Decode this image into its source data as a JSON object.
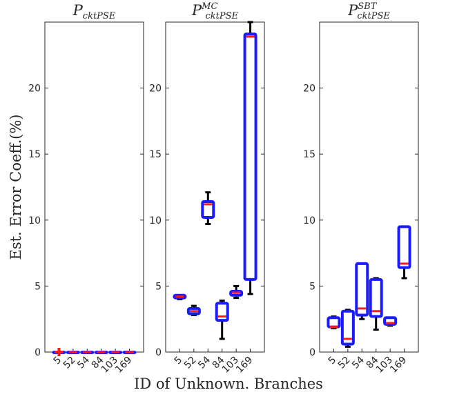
{
  "chart_data": {
    "type": "box",
    "ylabel": "Est. Error Coeff.(%)",
    "xlabel": "ID of Unknown. Branches",
    "ylim": [
      0,
      25
    ],
    "yticks": [
      0,
      5,
      10,
      15,
      20
    ],
    "box_color": "#1a1aff",
    "median_color": "#ff1a1a",
    "whisker_color": "#000000",
    "panels": [
      {
        "title_main": "P",
        "title_sub": "cktPSE",
        "title_sup": "",
        "categories": [
          "5",
          "52",
          "54",
          "84",
          "103",
          "169"
        ],
        "boxes": [
          {
            "min": 0,
            "q1": 0,
            "median": 0,
            "q3": 0,
            "max": 0
          },
          {
            "min": 0,
            "q1": 0,
            "median": 0,
            "q3": 0,
            "max": 0
          },
          {
            "min": 0,
            "q1": 0,
            "median": 0,
            "q3": 0,
            "max": 0
          },
          {
            "min": 0,
            "q1": 0,
            "median": 0,
            "q3": 0,
            "max": 0
          },
          {
            "min": 0,
            "q1": 0,
            "median": 0,
            "q3": 0,
            "max": 0
          },
          {
            "min": 0,
            "q1": 0,
            "median": 0,
            "q3": 0,
            "max": 0
          }
        ],
        "outliers": [
          {
            "category": "5",
            "value": 0
          }
        ]
      },
      {
        "title_main": "P",
        "title_sub": "cktPSE",
        "title_sup": "MC",
        "categories": [
          "5",
          "52",
          "54",
          "84",
          "103",
          "169"
        ],
        "boxes": [
          {
            "min": 4.0,
            "q1": 4.1,
            "median": 4.2,
            "q3": 4.3,
            "max": 4.3
          },
          {
            "min": 2.8,
            "q1": 2.9,
            "median": 3.1,
            "q3": 3.3,
            "max": 3.5
          },
          {
            "min": 9.7,
            "q1": 10.2,
            "median": 11.2,
            "q3": 11.4,
            "max": 12.1
          },
          {
            "min": 1.0,
            "q1": 2.4,
            "median": 2.7,
            "q3": 3.7,
            "max": 3.9
          },
          {
            "min": 4.1,
            "q1": 4.3,
            "median": 4.5,
            "q3": 4.6,
            "max": 5.0
          },
          {
            "min": 4.4,
            "q1": 5.5,
            "median": 23.9,
            "q3": 24.1,
            "max": 25.0
          }
        ],
        "outliers": []
      },
      {
        "title_main": "P",
        "title_sub": "cktPSE",
        "title_sup": "SBT",
        "categories": [
          "5",
          "52",
          "54",
          "84",
          "103",
          "169"
        ],
        "boxes": [
          {
            "min": 1.8,
            "q1": 1.9,
            "median": 1.9,
            "q3": 2.6,
            "max": 2.7
          },
          {
            "min": 0.4,
            "q1": 0.6,
            "median": 1.0,
            "q3": 3.1,
            "max": 3.2
          },
          {
            "min": 2.5,
            "q1": 2.8,
            "median": 3.3,
            "q3": 6.7,
            "max": 6.7
          },
          {
            "min": 1.7,
            "q1": 2.7,
            "median": 3.1,
            "q3": 5.5,
            "max": 5.6
          },
          {
            "min": 2.0,
            "q1": 2.1,
            "median": 2.2,
            "q3": 2.6,
            "max": 2.6
          },
          {
            "min": 5.6,
            "q1": 6.4,
            "median": 6.7,
            "q3": 9.5,
            "max": 9.5
          }
        ],
        "outliers": []
      }
    ]
  }
}
